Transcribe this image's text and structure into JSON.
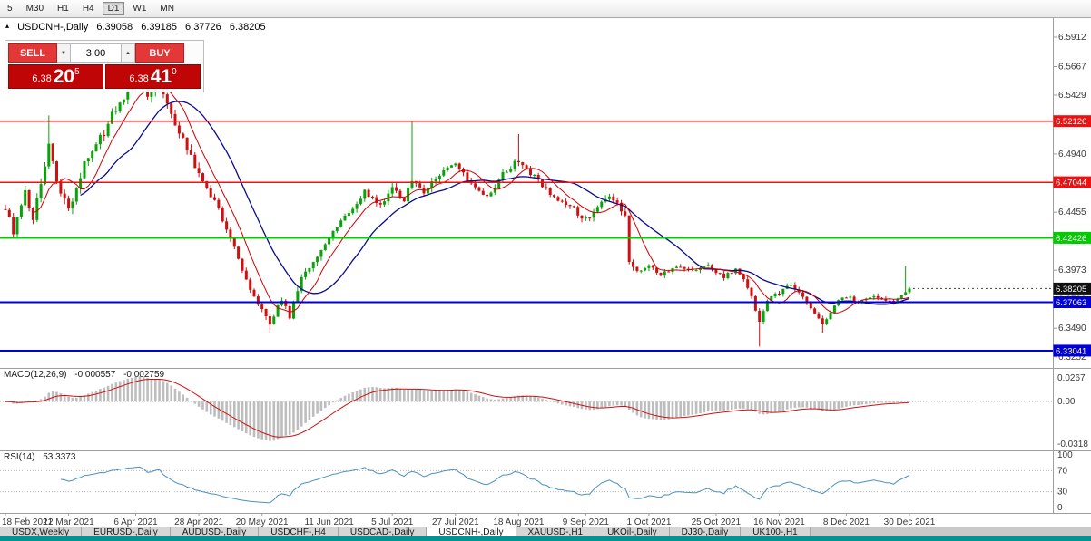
{
  "toolbar": {
    "timeframes": [
      "5",
      "M30",
      "H1",
      "H4",
      "D1",
      "W1",
      "MN"
    ],
    "active": "D1"
  },
  "header": {
    "expand_icon": "▴",
    "title": "USDCNH-,Daily",
    "open": "6.39058",
    "high": "6.39185",
    "low": "6.37726",
    "close": "6.38205"
  },
  "icons": {
    "spin_up": "▲",
    "spin_down": "▼"
  },
  "trade": {
    "sell_label": "SELL",
    "buy_label": "BUY",
    "volume": "3.00",
    "sell_price": {
      "base": "6.38",
      "pips": "20",
      "point": "5"
    },
    "buy_price": {
      "base": "6.38",
      "pips": "41",
      "point": "0"
    }
  },
  "chart": {
    "price_range": [
      6.316,
      6.607
    ],
    "num_candles": 230,
    "last_price": 6.38205,
    "last_price_label": "6.38205",
    "price_axis": {
      "ticks": [
        "6.5912",
        "6.5667",
        "6.5429",
        "6.5190",
        "6.4940",
        "6.4705",
        "6.4455",
        "6.4216",
        "6.3973",
        "6.3730",
        "6.3490",
        "6.3252"
      ]
    },
    "levels": [
      {
        "price": 6.52126,
        "label": "6.52126",
        "color": "#ee1111",
        "width": 1.4
      },
      {
        "price": 6.47044,
        "label": "6.47044",
        "color": "#ee1111",
        "width": 1.4
      },
      {
        "price": 6.42426,
        "label": "6.42426",
        "color": "#00cc00",
        "width": 2
      },
      {
        "price": 6.37063,
        "label": "6.37063",
        "color": "#0000d8",
        "width": 2
      },
      {
        "price": 6.33041,
        "label": "6.33041",
        "color": "#0000d8",
        "width": 2
      }
    ],
    "date_axis": [
      "18 Feb 2021",
      "12 Mar 2021",
      "6 Apr 2021",
      "28 Apr 2021",
      "20 May 2021",
      "11 Jun 2021",
      "5 Jul 2021",
      "27 Jul 2021",
      "18 Aug 2021",
      "9 Sep 2021",
      "1 Oct 2021",
      "25 Oct 2021",
      "16 Nov 2021",
      "8 Dec 2021",
      "30 Dec 2021"
    ],
    "date_tick_indices": [
      0,
      16,
      33,
      49,
      65,
      82,
      98,
      114,
      130,
      147,
      163,
      180,
      196,
      213,
      229
    ],
    "price_anchors": [
      [
        0,
        6.448
      ],
      [
        2,
        6.428
      ],
      [
        5,
        6.462
      ],
      [
        7,
        6.442
      ],
      [
        9,
        6.468
      ],
      [
        11,
        6.503
      ],
      [
        13,
        6.472
      ],
      [
        16,
        6.446
      ],
      [
        20,
        6.486
      ],
      [
        25,
        6.512
      ],
      [
        28,
        6.533
      ],
      [
        31,
        6.545
      ],
      [
        34,
        6.557
      ],
      [
        36,
        6.542
      ],
      [
        39,
        6.555
      ],
      [
        43,
        6.52
      ],
      [
        47,
        6.492
      ],
      [
        50,
        6.472
      ],
      [
        54,
        6.448
      ],
      [
        58,
        6.415
      ],
      [
        61,
        6.39
      ],
      [
        64,
        6.368
      ],
      [
        67,
        6.353
      ],
      [
        70,
        6.374
      ],
      [
        72,
        6.359
      ],
      [
        75,
        6.392
      ],
      [
        79,
        6.41
      ],
      [
        83,
        6.428
      ],
      [
        87,
        6.446
      ],
      [
        91,
        6.462
      ],
      [
        95,
        6.452
      ],
      [
        98,
        6.465
      ],
      [
        101,
        6.455
      ],
      [
        103,
        6.473
      ],
      [
        106,
        6.462
      ],
      [
        110,
        6.476
      ],
      [
        114,
        6.486
      ],
      [
        118,
        6.468
      ],
      [
        122,
        6.457
      ],
      [
        126,
        6.477
      ],
      [
        130,
        6.489
      ],
      [
        134,
        6.475
      ],
      [
        139,
        6.459
      ],
      [
        143,
        6.451
      ],
      [
        147,
        6.439
      ],
      [
        150,
        6.45
      ],
      [
        153,
        6.459
      ],
      [
        155,
        6.452
      ],
      [
        157,
        6.442
      ],
      [
        158,
        6.403
      ],
      [
        160,
        6.397
      ],
      [
        163,
        6.401
      ],
      [
        166,
        6.394
      ],
      [
        170,
        6.4
      ],
      [
        174,
        6.396
      ],
      [
        178,
        6.401
      ],
      [
        182,
        6.392
      ],
      [
        185,
        6.398
      ],
      [
        188,
        6.384
      ],
      [
        191,
        6.354
      ],
      [
        193,
        6.372
      ],
      [
        196,
        6.379
      ],
      [
        199,
        6.385
      ],
      [
        202,
        6.374
      ],
      [
        205,
        6.36
      ],
      [
        207,
        6.352
      ],
      [
        210,
        6.369
      ],
      [
        213,
        6.376
      ],
      [
        216,
        6.371
      ],
      [
        219,
        6.376
      ],
      [
        222,
        6.372
      ],
      [
        225,
        6.371
      ],
      [
        227,
        6.377
      ],
      [
        229,
        6.382
      ]
    ],
    "spikes": [
      {
        "i": 11,
        "h": 6.526
      },
      {
        "i": 34,
        "h": 6.5755
      },
      {
        "i": 39,
        "h": 6.567
      },
      {
        "i": 67,
        "l": 6.345
      },
      {
        "i": 103,
        "h": 6.5212
      },
      {
        "i": 130,
        "h": 6.5105
      },
      {
        "i": 191,
        "l": 6.3339
      },
      {
        "i": 207,
        "l": 6.345
      },
      {
        "i": 228,
        "h": 6.4008
      }
    ],
    "colors": {
      "up": "#0aa20a",
      "down": "#d01010",
      "ma_fast": "#d00000",
      "ma_slow": "#0b0b8f",
      "macd_hist": "#bdbdbd",
      "macd_signal": "#d01010",
      "rsi": "#4a8fc0"
    }
  },
  "macd": {
    "label": "MACD(12,26,9)",
    "value1": "-0.000557",
    "value2": "-0.002759",
    "axis": [
      "0.0267",
      "0.00",
      "-0.0318"
    ]
  },
  "rsi": {
    "label": "RSI(14)",
    "value": "53.3373",
    "axis": [
      "100",
      "70",
      "30",
      "0"
    ],
    "levels": [
      70,
      30
    ]
  },
  "tabs": {
    "items": [
      "USDX,Weekly",
      "EURUSD-,Daily",
      "AUDUSD-,Daily",
      "USDCHF-,H4",
      "USDCAD-,Daily",
      "USDCNH-,Daily",
      "XAUUSD-,H1",
      "UKOil-,Daily",
      "DJ30-,Daily",
      "UK100-,H1"
    ],
    "active": "USDCNH-,Daily"
  },
  "colors": {
    "status_bar": "#009494"
  }
}
